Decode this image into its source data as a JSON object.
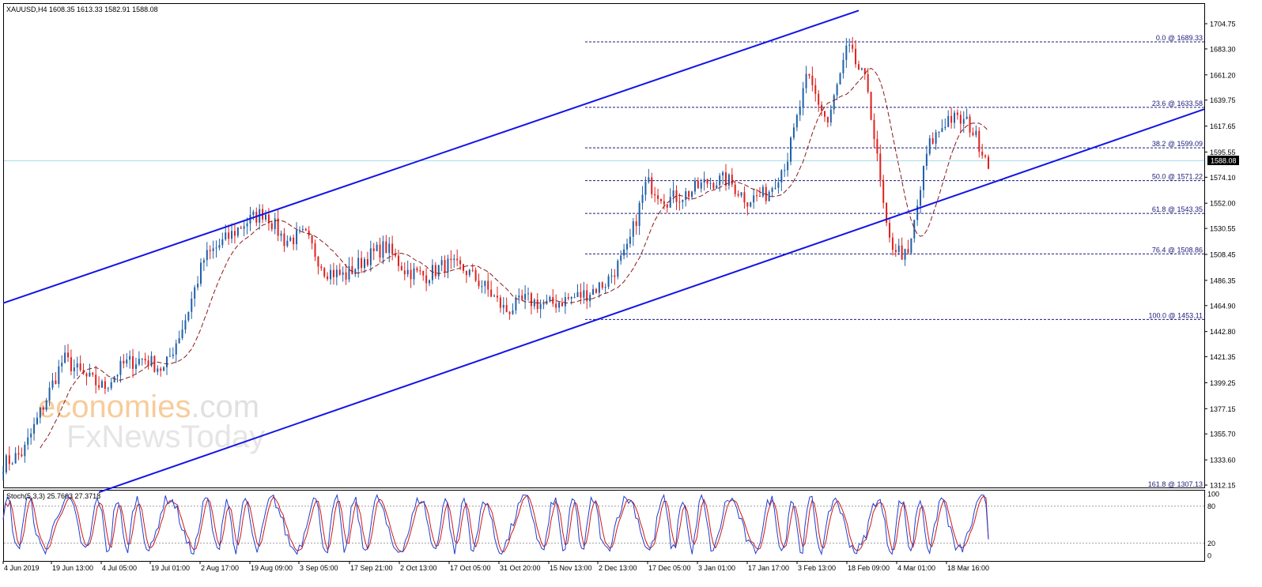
{
  "header": {
    "symbol_line": "XAUUSD,H4  1608.35 1613.33 1582.91 1588.08"
  },
  "colors": {
    "bull_candle": "#1f5fa8",
    "bear_candle": "#e0201c",
    "moving_average": "#8b1a1a",
    "channel": "#1414e6",
    "fib_lines": "#1b1b7a",
    "current_price_line": "#a9dfea",
    "stoch_main": "#1f3fd0",
    "stoch_signal": "#d01818",
    "price_tag_bg": "#000000",
    "price_tag_text": "#ffffff"
  },
  "watermark": {
    "brand": "economies",
    "brand_suffix": ".com",
    "sub": "FxNewsToday"
  },
  "stoch": {
    "label": "Stoch(5,3,3) 25.7603 27.3718",
    "ticks": [
      "100",
      "80",
      "20",
      "0"
    ],
    "levels": [
      100,
      80,
      20,
      0
    ],
    "last_main": 25.7603,
    "last_signal": 27.3718
  },
  "current_price_label": "1588.08",
  "chart_data": {
    "type": "line",
    "title": "XAUUSD,H4",
    "ohlc_last": {
      "open": 1608.35,
      "high": 1613.33,
      "low": 1582.91,
      "close": 1588.08
    },
    "y_ticks": [
      "1704.75",
      "1683.30",
      "1661.20",
      "1639.75",
      "1617.65",
      "1595.55",
      "1574.10",
      "1552.00",
      "1530.55",
      "1508.45",
      "1486.35",
      "1464.90",
      "1442.80",
      "1421.35",
      "1399.25",
      "1377.15",
      "1355.70",
      "1333.60",
      "1312.15"
    ],
    "ylim": [
      1305,
      1715
    ],
    "x_ticks": [
      "4 Jun 2019",
      "19 Jun 13:00",
      "4 Jul 05:00",
      "19 Jul 01:00",
      "2 Aug 17:00",
      "19 Aug 09:00",
      "3 Sep 05:00",
      "17 Sep 21:00",
      "2 Oct 13:00",
      "17 Oct 05:00",
      "31 Oct 20:00",
      "15 Nov 13:00",
      "2 Dec 13:00",
      "17 Dec 05:00",
      "3 Jan 01:00",
      "17 Jan 17:00",
      "3 Feb 13:00",
      "18 Feb 09:00",
      "4 Mar 01:00",
      "18 Mar 16:00"
    ],
    "series": [
      {
        "values": [
          1330,
          1340,
          1380,
          1420,
          1405,
          1395,
          1415,
          1420,
          1410,
          1450,
          1505,
          1520,
          1535,
          1545,
          1520,
          1525,
          1495,
          1490,
          1505,
          1515,
          1495,
          1490,
          1500,
          1495,
          1480,
          1460,
          1470,
          1465,
          1470,
          1475,
          1485,
          1510,
          1570,
          1555,
          1560,
          1570,
          1572,
          1555,
          1560,
          1590,
          1660,
          1620,
          1685,
          1650,
          1520,
          1505,
          1600,
          1625,
          1620,
          1588
        ]
      }
    ],
    "fib_levels": [
      {
        "label": "0.0 @ 1689.33",
        "value": 1689.33
      },
      {
        "label": "23.6 @ 1633.58",
        "value": 1633.58
      },
      {
        "label": "38.2 @ 1599.09",
        "value": 1599.09
      },
      {
        "label": "50.0 @ 1571.22",
        "value": 1571.22
      },
      {
        "label": "61.8 @ 1543.35",
        "value": 1543.35
      },
      {
        "label": "76.4 @ 1508.86",
        "value": 1508.86
      },
      {
        "label": "100.0 @ 1453.11",
        "value": 1453.11
      },
      {
        "label": "161.8 @ 1307.13",
        "value": 1307.13
      }
    ],
    "channel": {
      "upper": [
        {
          "x": "4 Jun 2019",
          "y": 1467
        },
        {
          "x": "18 Feb 09:00",
          "y": 1716
        }
      ],
      "lower": [
        {
          "x": "2 Jul 2019",
          "y": 1306
        },
        {
          "x": "18 Mar 16:00",
          "y": 1574
        }
      ]
    },
    "grid": false,
    "legend": "none"
  }
}
